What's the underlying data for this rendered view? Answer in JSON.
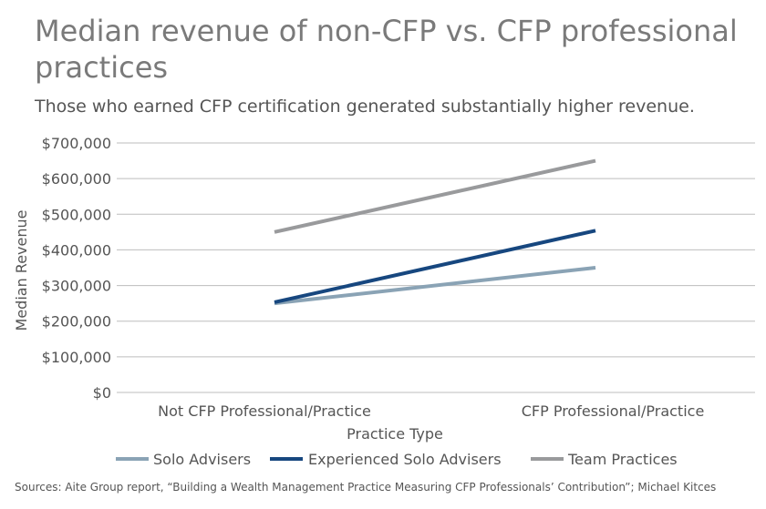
{
  "title": "Median revenue of non-CFP vs. CFP professional practices",
  "subtitle": "Those who earned CFP certification generated substantially higher revenue.",
  "source": "Sources: Aite Group report, “Building a Wealth Management Practice Measuring CFP Professionals’ Contribution”; Michael Kitces",
  "chart_data": {
    "type": "line",
    "categories": [
      "Not CFP Professional/Practice",
      "CFP Professional/Practice"
    ],
    "xlabel": "Practice Type",
    "ylabel": "Median Revenue",
    "ylim": [
      0,
      700000
    ],
    "yticks": [
      0,
      100000,
      200000,
      300000,
      400000,
      500000,
      600000,
      700000
    ],
    "ytick_labels": [
      "$0",
      "$100,000",
      "$200,000",
      "$300,000",
      "$400,000",
      "$500,000",
      "$600,000",
      "$700,000"
    ],
    "grid": true,
    "legend_position": "bottom",
    "series": [
      {
        "name": "Solo Advisers",
        "values": [
          250000,
          350000
        ],
        "color": "#8aa3b5"
      },
      {
        "name": "Experienced Solo Advisers",
        "values": [
          253000,
          454000
        ],
        "color": "#17477f"
      },
      {
        "name": "Team Practices",
        "values": [
          450000,
          650000
        ],
        "color": "#999a9c"
      }
    ]
  }
}
